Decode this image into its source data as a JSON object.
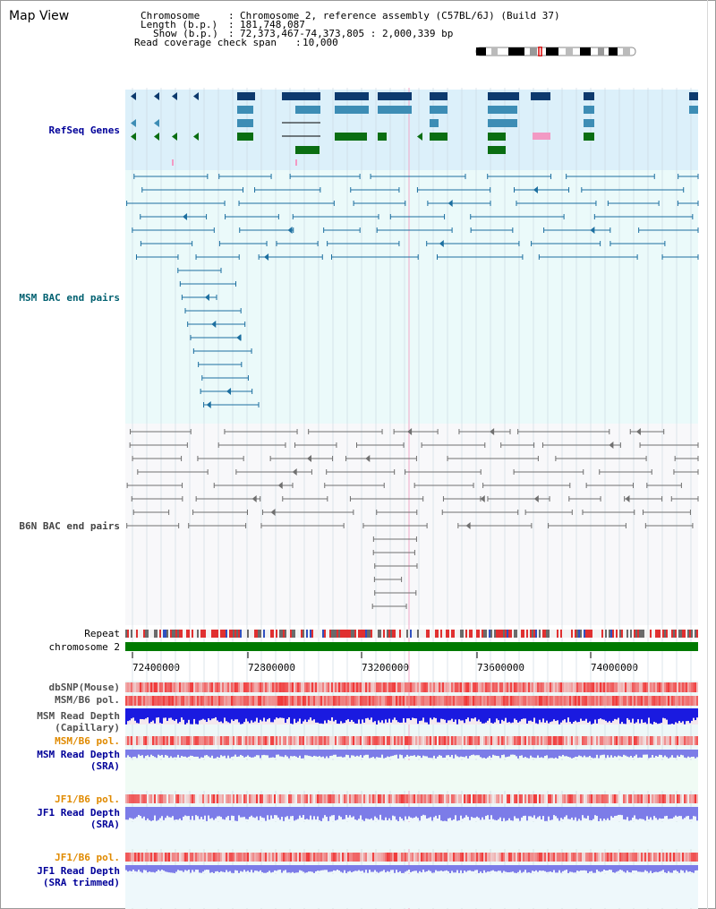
{
  "window_title": "Map View",
  "header": {
    "chromosome_label": "Chromosome",
    "chromosome_value": "Chromosome 2, reference assembly (C57BL/6J) (Build 37)",
    "length_label": "Length (b.p.)",
    "length_value": "181,748,087",
    "show_label": "Show (b.p.)",
    "show_value": "72,373,467-74,373,805 : 2,000,339 bp",
    "coverage_label": "Read coverage check span",
    "coverage_value": "10,000"
  },
  "tracks": {
    "refseq": "RefSeq Genes",
    "msm_bac": "MSM BAC end pairs",
    "b6n_bac": "B6N BAC end pairs",
    "repeat": "Repeat",
    "chromosome": "chromosome 2",
    "dbsnp": "dbSNP(Mouse)",
    "msm_b6_pol_1": "MSM/B6 pol.",
    "msm_read_depth_cap_1": "MSM Read Depth",
    "msm_read_depth_cap_2": "(Capillary)",
    "msm_b6_pol_2": "MSM/B6 pol.",
    "msm_read_depth_sra_1": "MSM Read Depth",
    "msm_read_depth_sra_2": "(SRA)",
    "jf1_b6_pol_1": "JF1/B6 pol.",
    "jf1_read_depth_sra_1": "JF1 Read Depth",
    "jf1_read_depth_sra_2": "(SRA)",
    "jf1_b6_pol_2": "JF1/B6 pol.",
    "jf1_read_depth_trim_1": "JF1 Read Depth",
    "jf1_read_depth_trim_2": "(SRA trimmed)"
  },
  "axis_ticks": [
    "72400000",
    "72800000",
    "73200000",
    "73600000",
    "74000000"
  ],
  "colors": {
    "refseq_bg": "#dcf0fa",
    "msm_bg": "#ebfafa",
    "b6n_bg": "#f8f8fa",
    "gene_navy": "#0d3a6e",
    "gene_steel": "#3d8db5",
    "gene_green": "#0a6e12",
    "gene_pink": "#f29ac4",
    "chromosome_bar": "#007a00",
    "label_blue": "#000099",
    "label_teal": "#006070",
    "label_orange": "#e08a00",
    "msm_pair": "#1c6fa0",
    "b6n_pair": "#707070",
    "depth_capillary": "#1a1ae0",
    "depth_sra": "#7c7ce8"
  }
}
